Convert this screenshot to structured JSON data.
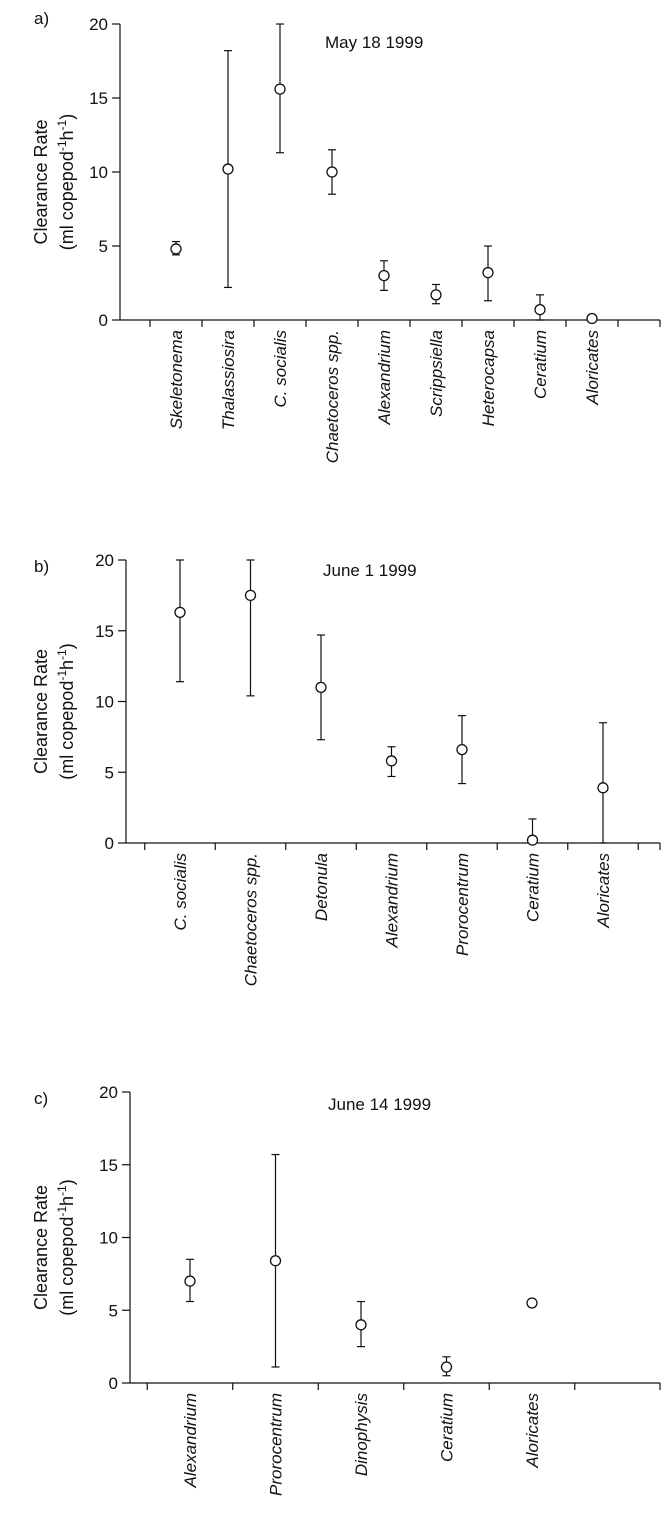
{
  "chart_data": [
    {
      "type": "scatter",
      "panel_label": "a)",
      "title": "May 18 1999",
      "ylabel": "Clearance Rate",
      "ylabel_line2": "(ml copepod",
      "ylabel_units": {
        "sup1": "-1",
        "mid": "h",
        "sup2": "-1",
        "end": ")"
      },
      "ylim": [
        0,
        20
      ],
      "yticks": [
        0,
        5,
        10,
        15,
        20
      ],
      "grid": false,
      "categories": [
        "Skeletonema",
        "Thalassiosira",
        "C. socialis",
        "Chaetoceros spp.",
        "Alexandrium",
        "Scrippsiella",
        "Heterocapsa",
        "Ceratium",
        "Aloricates"
      ],
      "values": [
        4.8,
        10.2,
        15.6,
        10.0,
        3.0,
        1.7,
        3.2,
        0.7,
        0.1
      ],
      "error_low": [
        4.4,
        2.2,
        11.3,
        8.5,
        2.0,
        1.1,
        1.3,
        0.0,
        null
      ],
      "error_high": [
        5.3,
        18.2,
        20.0,
        11.5,
        4.0,
        2.4,
        5.0,
        1.7,
        null
      ]
    },
    {
      "type": "scatter",
      "panel_label": "b)",
      "title": "June 1 1999",
      "ylabel": "Clearance Rate",
      "ylabel_line2": "(ml copepod",
      "ylabel_units": {
        "sup1": "-1",
        "mid": "h",
        "sup2": "-1",
        "end": ")"
      },
      "ylim": [
        0,
        20
      ],
      "yticks": [
        0,
        5,
        10,
        15,
        20
      ],
      "grid": false,
      "categories": [
        "C. socialis",
        "Chaetoceros spp.",
        "Detonula",
        "Alexandrium",
        "Prorocentrum",
        "Ceratium",
        "Aloricates"
      ],
      "values": [
        16.3,
        17.5,
        11.0,
        5.8,
        6.6,
        0.2,
        3.9
      ],
      "error_low": [
        11.4,
        10.4,
        7.3,
        4.7,
        4.2,
        0.0,
        0.0
      ],
      "error_high": [
        20.0,
        20.0,
        14.7,
        6.8,
        9.0,
        1.7,
        8.5
      ]
    },
    {
      "type": "scatter",
      "panel_label": "c)",
      "title": "June 14 1999",
      "ylabel": "Clearance Rate",
      "ylabel_line2": "(ml copepod",
      "ylabel_units": {
        "sup1": "-1",
        "mid": "h",
        "sup2": "-1",
        "end": ")"
      },
      "ylim": [
        0,
        20
      ],
      "yticks": [
        0,
        5,
        10,
        15,
        20
      ],
      "grid": false,
      "categories": [
        "Alexandrium",
        "Prorocentrum",
        "Dinophysis",
        "Ceratium",
        "Aloricates"
      ],
      "values": [
        7.0,
        8.4,
        4.0,
        1.1,
        5.5
      ],
      "error_low": [
        5.6,
        1.1,
        2.5,
        0.5,
        null
      ],
      "error_high": [
        8.5,
        15.7,
        5.6,
        1.8,
        null
      ]
    }
  ]
}
